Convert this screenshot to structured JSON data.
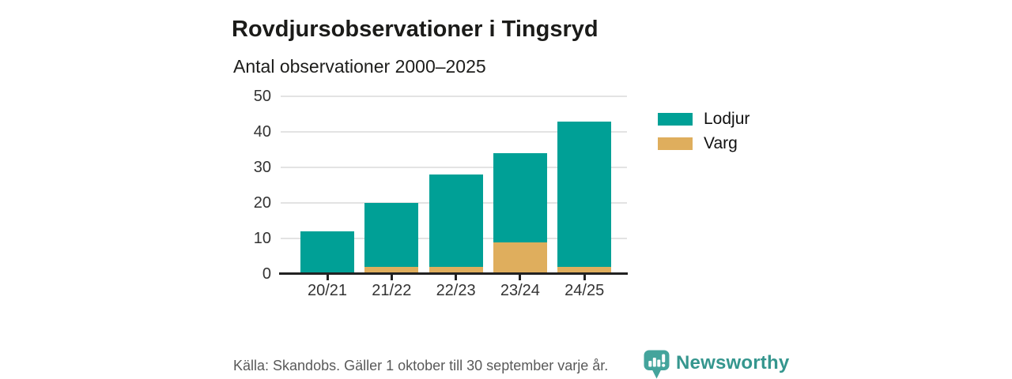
{
  "header": {
    "title": "Rovdjursobservationer i Tingsryd",
    "subtitle": "Antal observationer 2000–2025"
  },
  "chart_data": {
    "type": "bar",
    "stacked": true,
    "title": "Rovdjursobservationer i Tingsryd",
    "subtitle": "Antal observationer 2000–2025",
    "categories": [
      "20/21",
      "21/22",
      "22/23",
      "23/24",
      "24/25"
    ],
    "series": [
      {
        "name": "Varg",
        "color": "#DFAE5D",
        "values": [
          0,
          2,
          2,
          9,
          2
        ]
      },
      {
        "name": "Lodjur",
        "color": "#00A096",
        "values": [
          12,
          18,
          26,
          25,
          41
        ]
      }
    ],
    "totals": [
      12,
      20,
      28,
      34,
      43
    ],
    "xlabel": "",
    "ylabel": "",
    "ylim": [
      0,
      50
    ],
    "yticks": [
      0,
      10,
      20,
      30,
      40,
      50
    ],
    "grid": true,
    "legend_position": "right"
  },
  "legend": {
    "items": [
      {
        "label": "Lodjur",
        "color": "#00A096"
      },
      {
        "label": "Varg",
        "color": "#DFAE5D"
      }
    ]
  },
  "footer": {
    "source": "Källa: Skandobs. Gäller 1 oktober till 30 september varje år.",
    "brand": "Newsworthy",
    "logo_icon": "newsworthy-chart-bubble-icon"
  },
  "colors": {
    "lodjur": "#00A096",
    "varg": "#DFAE5D",
    "logo_teal": "#44A49C",
    "brand_text_teal": "#35968E",
    "gridline": "#E3E3E3",
    "axis": "#222222",
    "text_dark": "#1D1D1B",
    "text_muted": "#595959"
  }
}
